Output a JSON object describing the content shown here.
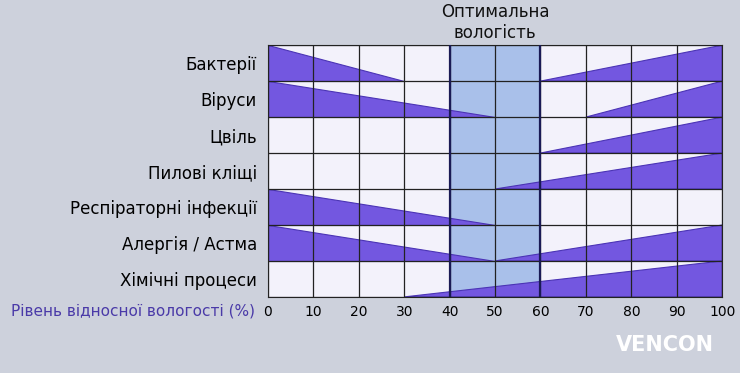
{
  "chart_data": {
    "type": "wedge",
    "title": "Оптимальна\nвологість",
    "x_label": "Рівень відносної вологості (%)",
    "categories": [
      "Бактерії",
      "Віруси",
      "Цвіль",
      "Пилові кліщі",
      "Респіраторні інфекції",
      "Алергія / Астма",
      "Хімічні процеси"
    ],
    "decrease": [
      [
        0,
        30
      ],
      [
        0,
        50
      ],
      null,
      null,
      [
        0,
        50
      ],
      [
        0,
        50
      ],
      null
    ],
    "increase": [
      [
        60,
        100
      ],
      [
        70,
        100
      ],
      [
        60,
        100
      ],
      [
        50,
        100
      ],
      null,
      [
        50,
        100
      ],
      [
        30,
        100
      ]
    ],
    "optimal_range": [
      40,
      60
    ],
    "xlim": [
      0,
      100
    ],
    "xticks": [
      0,
      10,
      20,
      30,
      40,
      50,
      60,
      70,
      80,
      90,
      100
    ],
    "grid": true,
    "color": "#7357e0",
    "watermark": "VENCON"
  }
}
